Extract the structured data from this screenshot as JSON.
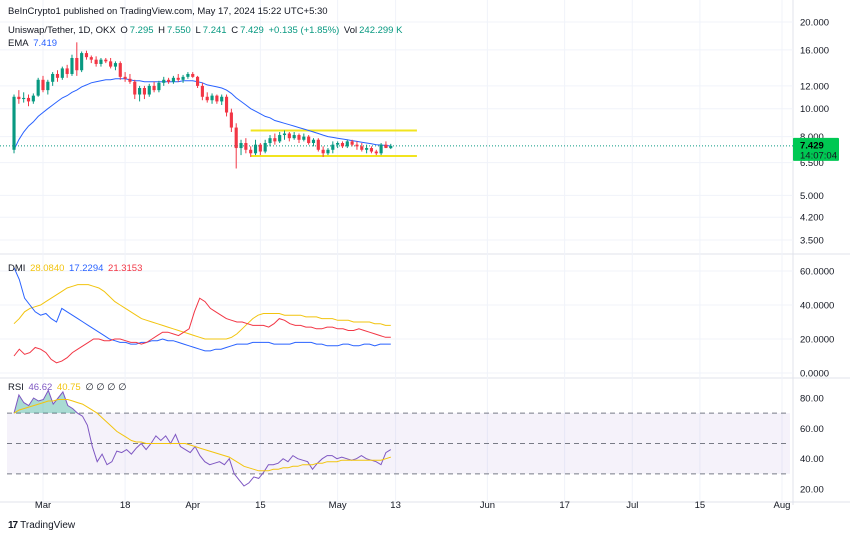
{
  "publisher_line": "BeInCrypto1 published on TradingView.com, May 17, 2024 15:22 UTC+5:30",
  "symbol_line": {
    "symbol": "Uniswap/Tether, 1D, OKX",
    "o_label": "O",
    "o": "7.295",
    "h_label": "H",
    "h": "7.550",
    "l_label": "L",
    "l": "7.241",
    "c_label": "C",
    "c": "7.429",
    "change": "+0.135 (+1.85%)",
    "vol_label": "Vol",
    "vol": "242.299 K"
  },
  "ema_legend": {
    "label": "EMA",
    "value": "7.419"
  },
  "dmi_legend": {
    "label": "DMI",
    "adx": "28.0840",
    "plus_di": "17.2294",
    "minus_di": "21.3153"
  },
  "rsi_legend": {
    "label": "RSI",
    "rsi": "46.62",
    "ma": "40.75",
    "extra": "∅ ∅ ∅ ∅"
  },
  "price_badge": {
    "price": "7.429",
    "countdown": "14:07:04"
  },
  "brand": "TradingView",
  "colors": {
    "up": "#089981",
    "down": "#f23645",
    "ema": "#2962ff",
    "adx": "#f2c40f",
    "plus_di": "#2962ff",
    "minus_di": "#f23645",
    "rsi": "#7e57c2",
    "rsi_ma": "#f2c40f",
    "range_box": "#f2e41f",
    "badge": "#00c853"
  },
  "chart_data": [
    {
      "type": "candlestick",
      "name": "Uniswap/Tether, 1D, OKX",
      "scale": "log",
      "y_ticks": [
        20,
        16,
        12,
        10,
        8,
        6.5,
        5,
        4.2,
        3.5
      ],
      "y_tick_labels": [
        "20.000",
        "16.000",
        "12.000",
        "10.000",
        "8.000",
        "6.500",
        "5.000",
        "4.200",
        "3.500"
      ],
      "x_ticks": [
        "Mar",
        "18",
        "Apr",
        "15",
        "May",
        "13",
        "Jun",
        "17",
        "Jul",
        "15",
        "Aug"
      ],
      "x_tick_dates": [
        "2024-03-01",
        "2024-03-18",
        "2024-04-01",
        "2024-04-15",
        "2024-05-01",
        "2024-05-13",
        "2024-06-01",
        "2024-06-17",
        "2024-07-01",
        "2024-07-15",
        "2024-08-01"
      ],
      "start_date": "2024-02-24",
      "range_box": {
        "upper": 8.4,
        "lower": 6.85,
        "from": "2024-04-13",
        "to": "2024-05-17"
      },
      "last_price_line": 7.429,
      "candles": [
        [
          7.2,
          11.2,
          7.0,
          11.0
        ],
        [
          11.0,
          11.6,
          10.4,
          10.8
        ],
        [
          10.8,
          11.4,
          10.5,
          10.9
        ],
        [
          10.9,
          11.2,
          10.2,
          10.6
        ],
        [
          10.6,
          11.3,
          10.4,
          11.1
        ],
        [
          11.1,
          12.8,
          11.0,
          12.6
        ],
        [
          12.6,
          13.0,
          11.4,
          11.6
        ],
        [
          11.6,
          12.6,
          11.2,
          12.4
        ],
        [
          12.4,
          13.4,
          12.0,
          13.2
        ],
        [
          13.2,
          13.6,
          12.4,
          12.8
        ],
        [
          12.8,
          14.0,
          12.6,
          13.8
        ],
        [
          13.8,
          14.2,
          12.8,
          13.2
        ],
        [
          13.2,
          15.4,
          13.0,
          15.0
        ],
        [
          15.0,
          17.0,
          13.0,
          13.6
        ],
        [
          13.6,
          15.8,
          13.4,
          15.6
        ],
        [
          15.6,
          15.9,
          14.8,
          15.1
        ],
        [
          15.1,
          15.3,
          14.4,
          14.8
        ],
        [
          14.8,
          15.2,
          14.0,
          14.3
        ],
        [
          14.3,
          15.0,
          14.0,
          14.8
        ],
        [
          14.8,
          15.0,
          14.4,
          14.6
        ],
        [
          14.6,
          15.0,
          13.8,
          14.0
        ],
        [
          14.0,
          14.6,
          13.6,
          14.4
        ],
        [
          14.4,
          14.6,
          12.6,
          12.9
        ],
        [
          12.9,
          13.4,
          12.4,
          12.7
        ],
        [
          12.7,
          13.2,
          12.2,
          12.4
        ],
        [
          12.4,
          12.6,
          10.8,
          11.2
        ],
        [
          11.2,
          12.0,
          10.6,
          11.8
        ],
        [
          11.8,
          12.0,
          10.8,
          11.2
        ],
        [
          11.2,
          12.2,
          11.0,
          12.0
        ],
        [
          12.0,
          12.4,
          11.4,
          11.6
        ],
        [
          11.6,
          12.5,
          11.4,
          12.3
        ],
        [
          12.3,
          12.9,
          12.0,
          12.6
        ],
        [
          12.6,
          12.8,
          12.2,
          12.4
        ],
        [
          12.4,
          13.0,
          12.2,
          12.8
        ],
        [
          12.8,
          13.2,
          12.4,
          12.6
        ],
        [
          12.6,
          13.1,
          12.3,
          12.9
        ],
        [
          12.9,
          13.4,
          12.7,
          13.2
        ],
        [
          13.2,
          13.4,
          12.8,
          12.9
        ],
        [
          12.9,
          13.0,
          11.8,
          12.0
        ],
        [
          12.0,
          12.3,
          10.7,
          11.0
        ],
        [
          11.0,
          11.4,
          10.5,
          10.7
        ],
        [
          10.7,
          11.3,
          10.4,
          11.1
        ],
        [
          11.1,
          11.2,
          10.4,
          10.6
        ],
        [
          10.6,
          11.2,
          10.3,
          11.0
        ],
        [
          11.0,
          11.2,
          9.4,
          9.7
        ],
        [
          9.7,
          10.0,
          8.3,
          8.6
        ],
        [
          8.6,
          8.9,
          6.2,
          7.3
        ],
        [
          7.3,
          7.8,
          6.9,
          7.6
        ],
        [
          7.6,
          7.9,
          7.0,
          7.2
        ],
        [
          7.2,
          7.4,
          6.8,
          7.0
        ],
        [
          7.0,
          7.8,
          6.9,
          7.5
        ],
        [
          7.5,
          7.6,
          6.9,
          7.1
        ],
        [
          7.1,
          7.8,
          7.0,
          7.6
        ],
        [
          7.6,
          8.1,
          7.4,
          7.9
        ],
        [
          7.9,
          8.2,
          7.5,
          7.7
        ],
        [
          7.7,
          8.3,
          7.6,
          8.1
        ],
        [
          8.1,
          8.4,
          7.8,
          8.2
        ],
        [
          8.2,
          8.3,
          7.7,
          7.9
        ],
        [
          7.9,
          8.3,
          7.8,
          8.1
        ],
        [
          8.1,
          8.2,
          7.6,
          7.8
        ],
        [
          7.8,
          8.2,
          7.7,
          8.0
        ],
        [
          8.0,
          8.1,
          7.5,
          7.6
        ],
        [
          7.6,
          7.9,
          7.4,
          7.8
        ],
        [
          7.8,
          7.9,
          7.1,
          7.2
        ],
        [
          7.2,
          7.4,
          6.8,
          7.0
        ],
        [
          7.0,
          7.3,
          6.9,
          7.2
        ],
        [
          7.2,
          7.7,
          7.0,
          7.5
        ],
        [
          7.5,
          7.7,
          7.3,
          7.6
        ],
        [
          7.6,
          7.7,
          7.3,
          7.4
        ],
        [
          7.4,
          7.8,
          7.3,
          7.7
        ],
        [
          7.7,
          7.8,
          7.4,
          7.5
        ],
        [
          7.5,
          7.7,
          7.2,
          7.4
        ],
        [
          7.4,
          7.6,
          7.1,
          7.2
        ],
        [
          7.2,
          7.5,
          7.0,
          7.3
        ],
        [
          7.3,
          7.4,
          7.0,
          7.1
        ],
        [
          7.1,
          7.2,
          6.9,
          7.0
        ],
        [
          7.0,
          7.6,
          6.9,
          7.5
        ],
        [
          7.5,
          7.7,
          7.3,
          7.3
        ],
        [
          7.295,
          7.55,
          7.241,
          7.429
        ]
      ],
      "ema": [
        7.2,
        7.8,
        8.3,
        8.7,
        9.0,
        9.4,
        9.7,
        10.0,
        10.3,
        10.6,
        10.9,
        11.1,
        11.4,
        11.6,
        11.9,
        12.1,
        12.3,
        12.4,
        12.5,
        12.6,
        12.6,
        12.7,
        12.7,
        12.7,
        12.6,
        12.5,
        12.5,
        12.4,
        12.4,
        12.4,
        12.4,
        12.4,
        12.4,
        12.4,
        12.4,
        12.5,
        12.5,
        12.5,
        12.4,
        12.3,
        12.1,
        12.0,
        11.9,
        11.8,
        11.6,
        11.3,
        10.9,
        10.6,
        10.3,
        10.0,
        9.8,
        9.6,
        9.4,
        9.3,
        9.1,
        9.0,
        8.9,
        8.8,
        8.7,
        8.6,
        8.5,
        8.4,
        8.3,
        8.2,
        8.1,
        8.0,
        7.95,
        7.9,
        7.85,
        7.8,
        7.75,
        7.7,
        7.65,
        7.6,
        7.55,
        7.5,
        7.48,
        7.45,
        7.42
      ]
    },
    {
      "type": "line",
      "name": "DMI",
      "y_ticks": [
        60,
        40,
        20,
        0
      ],
      "y_tick_labels": [
        "60.0000",
        "40.0000",
        "20.0000",
        "0.0000"
      ],
      "y_range": [
        0,
        65
      ],
      "series": [
        {
          "name": "ADX",
          "values": [
            29,
            32,
            36,
            38,
            39,
            40,
            42,
            44,
            46,
            48,
            50,
            51,
            52,
            52,
            52,
            51,
            50,
            48,
            45,
            42,
            40,
            38,
            36,
            34,
            32,
            31,
            30,
            29,
            28,
            27,
            26,
            25,
            24,
            23,
            22,
            21,
            20,
            20,
            20,
            20,
            20,
            21,
            23,
            26,
            29,
            32,
            34,
            35,
            35,
            35,
            35,
            34,
            34,
            34,
            34,
            33,
            33,
            33,
            32,
            32,
            32,
            31,
            31,
            31,
            30,
            30,
            30,
            30,
            29,
            29,
            28,
            28
          ]
        },
        {
          "name": "+DI",
          "values": [
            62,
            55,
            44,
            40,
            36,
            34,
            35,
            32,
            30,
            38,
            36,
            34,
            32,
            30,
            28,
            26,
            24,
            22,
            20,
            19,
            18,
            18,
            17,
            17,
            18,
            18,
            19,
            19,
            20,
            19,
            19,
            18,
            17,
            16,
            15,
            14,
            13,
            13,
            14,
            14,
            15,
            16,
            17,
            17,
            17,
            18,
            18,
            18,
            18,
            17,
            17,
            17,
            17,
            18,
            18,
            18,
            18,
            17,
            17,
            16,
            16,
            16,
            17,
            17,
            16,
            16,
            17,
            17,
            16,
            17,
            17,
            17
          ]
        },
        {
          "name": "−DI",
          "values": [
            10,
            14,
            11,
            12,
            15,
            14,
            12,
            8,
            6,
            7,
            9,
            12,
            14,
            16,
            18,
            20,
            20,
            19,
            19,
            20,
            20,
            19,
            18,
            18,
            17,
            18,
            20,
            22,
            24,
            24,
            23,
            22,
            24,
            26,
            36,
            44,
            42,
            38,
            36,
            34,
            32,
            31,
            30,
            30,
            29,
            28,
            28,
            28,
            27,
            29,
            32,
            31,
            29,
            28,
            28,
            27,
            27,
            26,
            26,
            27,
            27,
            26,
            26,
            25,
            25,
            26,
            25,
            24,
            23,
            22,
            21,
            21
          ]
        }
      ]
    },
    {
      "type": "line",
      "name": "RSI",
      "y_ticks": [
        80,
        60,
        40,
        20
      ],
      "y_tick_labels": [
        "80.00",
        "60.00",
        "40.00",
        "20.00"
      ],
      "y_range": [
        15,
        90
      ],
      "bands": {
        "upper": 70,
        "middle": 50,
        "lower": 30
      },
      "series": [
        {
          "name": "RSI",
          "values": [
            70,
            82,
            77,
            75,
            80,
            78,
            79,
            85,
            76,
            80,
            84,
            75,
            73,
            70,
            68,
            62,
            48,
            38,
            43,
            36,
            38,
            45,
            44,
            46,
            43,
            47,
            50,
            46,
            50,
            55,
            52,
            55,
            50,
            56,
            48,
            46,
            44,
            48,
            42,
            38,
            36,
            37,
            38,
            36,
            40,
            30,
            26,
            22,
            24,
            28,
            27,
            31,
            36,
            36,
            37,
            40,
            38,
            42,
            40,
            39,
            38,
            33,
            37,
            40,
            42,
            42,
            40,
            41,
            40,
            39,
            40,
            42,
            40,
            39,
            38,
            36,
            44,
            46
          ]
        },
        {
          "name": "RSI-based MA",
          "values": [
            70,
            72,
            73,
            74,
            75,
            76,
            77,
            78,
            78,
            79,
            79,
            79,
            78,
            77,
            76,
            74,
            72,
            70,
            67,
            64,
            61,
            58,
            56,
            54,
            52,
            51,
            51,
            50,
            50,
            50,
            50,
            50,
            50,
            50,
            50,
            50,
            49,
            48,
            47,
            46,
            45,
            44,
            43,
            42,
            41,
            39,
            37,
            35,
            34,
            33,
            32,
            32,
            32,
            33,
            33,
            34,
            34,
            35,
            35,
            36,
            36,
            36,
            37,
            37,
            38,
            38,
            38,
            39,
            39,
            39,
            39,
            39,
            39,
            39,
            39,
            39,
            40,
            41
          ]
        }
      ]
    }
  ]
}
